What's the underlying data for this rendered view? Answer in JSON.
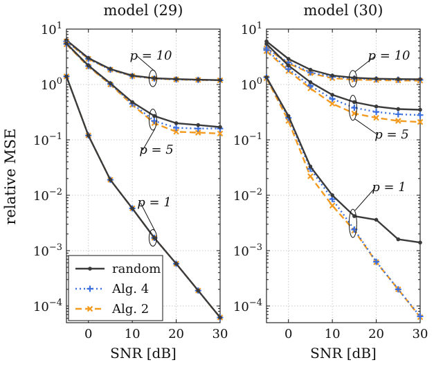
{
  "figure": {
    "ylabel": "relative MSE",
    "legend": {
      "entries": [
        {
          "label": "random",
          "color": "#3a3a3a",
          "dash": "",
          "marker": "dot"
        },
        {
          "label": "Alg. 4",
          "color": "#3b6fe0",
          "dash": "2 4",
          "marker": "plus"
        },
        {
          "label": "Alg. 2",
          "color": "#f39a1f",
          "dash": "9 5",
          "marker": "cross"
        }
      ],
      "placement": "bottom-left of left panel"
    }
  },
  "chart_data": [
    {
      "type": "line",
      "title": "model (29)",
      "xlabel": "SNR [dB]",
      "ylabel": "relative MSE",
      "xlim": [
        -5,
        30
      ],
      "ylim": [
        5e-05,
        10
      ],
      "yscale": "log",
      "grid": true,
      "xticks": [
        0,
        10,
        20,
        30
      ],
      "yticks": [
        {
          "value": 10,
          "base": "10",
          "exp": "1"
        },
        {
          "value": 1,
          "base": "10",
          "exp": "0"
        },
        {
          "value": 0.1,
          "base": "10",
          "exp": "−1"
        },
        {
          "value": 0.01,
          "base": "10",
          "exp": "−2"
        },
        {
          "value": 0.001,
          "base": "10",
          "exp": "−3"
        },
        {
          "value": 0.0001,
          "base": "10",
          "exp": "−4"
        }
      ],
      "x": [
        -5,
        0,
        5,
        10,
        15,
        20,
        25,
        30
      ],
      "groups": [
        {
          "label": "p = 10",
          "series": [
            {
              "name": "random",
              "values": [
                6.3,
                3.0,
                1.9,
                1.45,
                1.3,
                1.25,
                1.22,
                1.2
              ]
            },
            {
              "name": "Alg. 4",
              "values": [
                6.0,
                2.9,
                1.85,
                1.42,
                1.28,
                1.23,
                1.21,
                1.19
              ]
            },
            {
              "name": "Alg. 2",
              "values": [
                6.0,
                2.9,
                1.85,
                1.42,
                1.28,
                1.23,
                1.21,
                1.19
              ]
            }
          ]
        },
        {
          "label": "p = 5",
          "series": [
            {
              "name": "random",
              "values": [
                5.5,
                2.2,
                1.05,
                0.48,
                0.27,
                0.2,
                0.185,
                0.17
              ]
            },
            {
              "name": "Alg. 4",
              "values": [
                5.4,
                2.15,
                1.02,
                0.45,
                0.22,
                0.165,
                0.16,
                0.16
              ]
            },
            {
              "name": "Alg. 2",
              "values": [
                5.3,
                2.1,
                1.0,
                0.43,
                0.2,
                0.14,
                0.135,
                0.13
              ]
            }
          ]
        },
        {
          "label": "p = 1",
          "series": [
            {
              "name": "random",
              "values": [
                1.4,
                0.12,
                0.019,
                0.0058,
                0.0017,
                0.00058,
                0.00019,
                6.2e-05
              ]
            },
            {
              "name": "Alg. 4",
              "values": [
                1.4,
                0.12,
                0.019,
                0.0058,
                0.0017,
                0.00058,
                0.00019,
                6.2e-05
              ]
            },
            {
              "name": "Alg. 2",
              "values": [
                1.4,
                0.12,
                0.019,
                0.0058,
                0.0017,
                0.00058,
                0.00019,
                6.2e-05
              ]
            }
          ]
        }
      ]
    },
    {
      "type": "line",
      "title": "model (30)",
      "xlabel": "SNR [dB]",
      "ylabel": "",
      "xlim": [
        -5,
        30
      ],
      "ylim": [
        5e-05,
        10
      ],
      "yscale": "log",
      "grid": true,
      "xticks": [
        0,
        10,
        20,
        30
      ],
      "yticks": [
        {
          "value": 10,
          "base": "10",
          "exp": "1"
        },
        {
          "value": 1,
          "base": "10",
          "exp": "0"
        },
        {
          "value": 0.1,
          "base": "10",
          "exp": "−1"
        },
        {
          "value": 0.01,
          "base": "10",
          "exp": "−2"
        },
        {
          "value": 0.001,
          "base": "10",
          "exp": "−3"
        },
        {
          "value": 0.0001,
          "base": "10",
          "exp": "−4"
        }
      ],
      "x": [
        -5,
        0,
        5,
        10,
        15,
        20,
        25,
        30
      ],
      "groups": [
        {
          "label": "p = 10",
          "series": [
            {
              "name": "random",
              "values": [
                6.0,
                2.9,
                1.85,
                1.45,
                1.32,
                1.27,
                1.25,
                1.24
              ]
            },
            {
              "name": "Alg. 4",
              "values": [
                4.5,
                2.5,
                1.65,
                1.38,
                1.28,
                1.24,
                1.22,
                1.21
              ]
            },
            {
              "name": "Alg. 2",
              "values": [
                4.5,
                2.4,
                1.6,
                1.3,
                1.22,
                1.2,
                1.18,
                1.17
              ]
            }
          ]
        },
        {
          "label": "p = 5",
          "series": [
            {
              "name": "random",
              "values": [
                5.4,
                2.2,
                1.1,
                0.65,
                0.48,
                0.4,
                0.36,
                0.35
              ]
            },
            {
              "name": "Alg. 4",
              "values": [
                4.2,
                1.9,
                0.95,
                0.55,
                0.38,
                0.32,
                0.29,
                0.28
              ]
            },
            {
              "name": "Alg. 2",
              "values": [
                4.0,
                1.75,
                0.85,
                0.45,
                0.3,
                0.25,
                0.22,
                0.21
              ]
            }
          ]
        },
        {
          "label": "p = 1",
          "series": [
            {
              "name": "random",
              "values": [
                1.35,
                0.27,
                0.033,
                0.01,
                0.0042,
                0.0036,
                0.0016,
                0.0014
              ]
            },
            {
              "name": "Alg. 4",
              "values": [
                1.35,
                0.25,
                0.03,
                0.0085,
                0.0024,
                0.00063,
                0.0002,
                6.5e-05
              ]
            },
            {
              "name": "Alg. 2",
              "values": [
                1.3,
                0.22,
                0.022,
                0.0065,
                0.0023,
                0.00062,
                0.0002,
                6.3e-05
              ]
            }
          ]
        }
      ]
    }
  ]
}
